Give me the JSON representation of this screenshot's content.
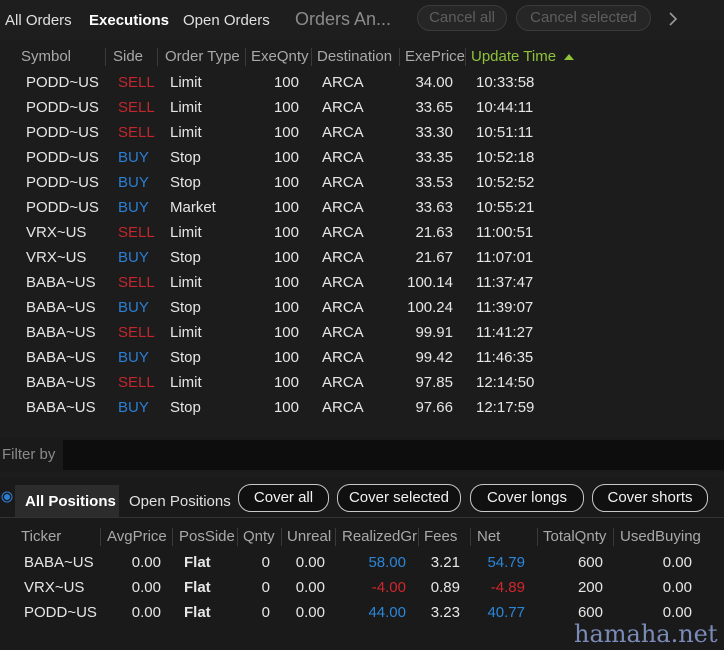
{
  "tabs": [
    "All Orders",
    "Executions",
    "Open Orders",
    "Orders An..."
  ],
  "buttons": [
    "Cancel all",
    "Cancel selected"
  ],
  "executions": {
    "columns": [
      "Symbol",
      "Side",
      "Order Type",
      "ExeQnty",
      "Destination",
      "ExePrice",
      "Update Time"
    ],
    "rows": [
      [
        "PODD~US",
        "SELL",
        "Limit",
        "100",
        "ARCA",
        "34.00",
        "10:33:58"
      ],
      [
        "PODD~US",
        "SELL",
        "Limit",
        "100",
        "ARCA",
        "33.65",
        "10:44:11"
      ],
      [
        "PODD~US",
        "SELL",
        "Limit",
        "100",
        "ARCA",
        "33.30",
        "10:51:11"
      ],
      [
        "PODD~US",
        "BUY",
        "Stop",
        "100",
        "ARCA",
        "33.35",
        "10:52:18"
      ],
      [
        "PODD~US",
        "BUY",
        "Stop",
        "100",
        "ARCA",
        "33.53",
        "10:52:52"
      ],
      [
        "PODD~US",
        "BUY",
        "Market",
        "100",
        "ARCA",
        "33.63",
        "10:55:21"
      ],
      [
        "VRX~US",
        "SELL",
        "Limit",
        "100",
        "ARCA",
        "21.63",
        "11:00:51"
      ],
      [
        "VRX~US",
        "BUY",
        "Stop",
        "100",
        "ARCA",
        "21.67",
        "11:07:01"
      ],
      [
        "BABA~US",
        "SELL",
        "Limit",
        "100",
        "ARCA",
        "100.14",
        "11:37:47"
      ],
      [
        "BABA~US",
        "BUY",
        "Stop",
        "100",
        "ARCA",
        "100.24",
        "11:39:07"
      ],
      [
        "BABA~US",
        "SELL",
        "Limit",
        "100",
        "ARCA",
        "99.91",
        "11:41:27"
      ],
      [
        "BABA~US",
        "BUY",
        "Stop",
        "100",
        "ARCA",
        "99.42",
        "11:46:35"
      ],
      [
        "BABA~US",
        "SELL",
        "Limit",
        "100",
        "ARCA",
        "97.85",
        "12:14:50"
      ],
      [
        "BABA~US",
        "BUY",
        "Stop",
        "100",
        "ARCA",
        "97.66",
        "12:17:59"
      ]
    ]
  },
  "filter_label": "Filter by",
  "position_tabs": [
    "All Positions",
    "Open Positions"
  ],
  "position_buttons": [
    "Cover all",
    "Cover selected",
    "Cover longs",
    "Cover shorts"
  ],
  "positions": {
    "columns": [
      "Ticker",
      "AvgPrice",
      "PosSide",
      "Qnty",
      "Unreal",
      "RealizedGr",
      "Fees",
      "Net",
      "TotalQnty",
      "UsedBuying"
    ],
    "rows": [
      [
        "BABA~US",
        "0.00",
        "Flat",
        "0",
        "0.00",
        "58.00",
        "3.21",
        "54.79",
        "600",
        "0.00"
      ],
      [
        "VRX~US",
        "0.00",
        "Flat",
        "0",
        "0.00",
        "-4.00",
        "0.89",
        "-4.89",
        "200",
        "0.00"
      ],
      [
        "PODD~US",
        "0.00",
        "Flat",
        "0",
        "0.00",
        "44.00",
        "3.23",
        "40.77",
        "600",
        "0.00"
      ]
    ]
  },
  "watermark": "hamaha.net"
}
